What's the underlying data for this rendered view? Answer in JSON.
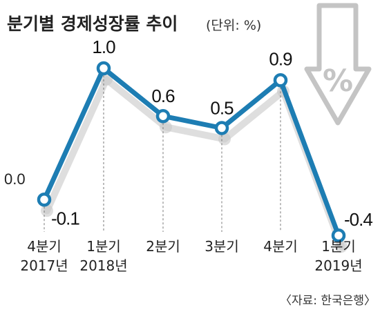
{
  "title": "분기별 경제성장률 추이",
  "unit": "(단위: %)",
  "source": "〈자료: 한국은행〉",
  "decoration": {
    "icon": "percent-down-arrow-icon",
    "symbol": "%"
  },
  "colors": {
    "line": "#1d7db3",
    "shadow": "#c8c8c8",
    "arrow": "#c4c4c4"
  },
  "chart_data": {
    "type": "line",
    "categories": [
      [
        "4분기",
        "2017년"
      ],
      [
        "1분기",
        "2018년"
      ],
      [
        "2분기",
        ""
      ],
      [
        "3분기",
        ""
      ],
      [
        "4분기",
        ""
      ],
      [
        "1분기",
        "2019년"
      ]
    ],
    "values": [
      -0.1,
      1.0,
      0.6,
      0.5,
      0.9,
      -0.4
    ],
    "value_labels": [
      "-0.1",
      "1.0",
      "0.6",
      "0.5",
      "0.9",
      "-0.4"
    ],
    "zero_label": "0.0",
    "ylim": [
      -0.4,
      1.0
    ],
    "grid": false
  }
}
